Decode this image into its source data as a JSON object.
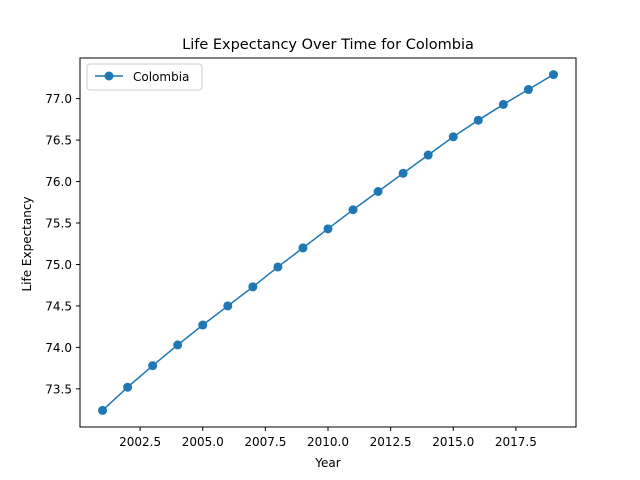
{
  "chart_data": {
    "type": "line",
    "title": "Life Expectancy Over Time for Colombia",
    "xlabel": "Year",
    "ylabel": "Life Expectancy",
    "x": [
      2001,
      2002,
      2003,
      2004,
      2005,
      2006,
      2007,
      2008,
      2009,
      2010,
      2011,
      2012,
      2013,
      2014,
      2015,
      2016,
      2017,
      2018,
      2019
    ],
    "series": [
      {
        "name": "Colombia",
        "color": "#1f77b4",
        "values": [
          73.24,
          73.52,
          73.78,
          74.03,
          74.27,
          74.5,
          74.73,
          74.97,
          75.2,
          75.43,
          75.66,
          75.88,
          76.1,
          76.32,
          76.54,
          76.74,
          76.93,
          77.11,
          77.29
        ]
      }
    ],
    "xlim": [
      2000.1,
      2019.9
    ],
    "ylim": [
      73.04,
      77.49
    ],
    "xticks": [
      2002.5,
      2005.0,
      2007.5,
      2010.0,
      2012.5,
      2015.0,
      2017.5
    ],
    "xtick_labels": [
      "2002.5",
      "2005.0",
      "2007.5",
      "2010.0",
      "2012.5",
      "2015.0",
      "2017.5"
    ],
    "yticks": [
      73.5,
      74.0,
      74.5,
      75.0,
      75.5,
      76.0,
      76.5,
      77.0
    ],
    "ytick_labels": [
      "73.5",
      "74.0",
      "74.5",
      "75.0",
      "75.5",
      "76.0",
      "76.5",
      "77.0"
    ],
    "grid": false,
    "legend": "top-left"
  }
}
